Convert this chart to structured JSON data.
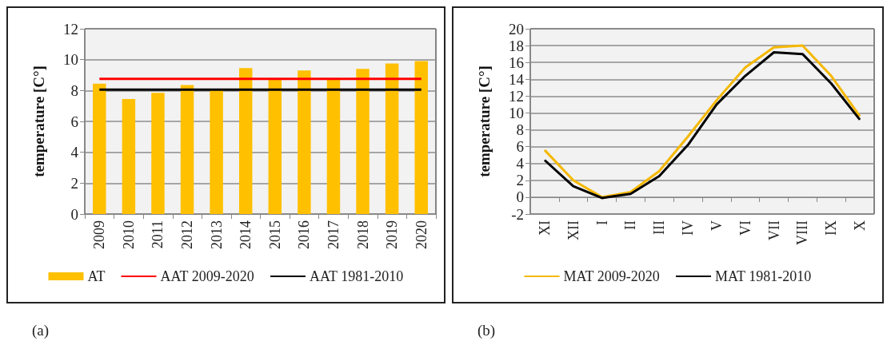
{
  "chart_data": [
    {
      "type": "bar",
      "categories": [
        "2009",
        "2010",
        "2011",
        "2012",
        "2013",
        "2014",
        "2015",
        "2016",
        "2017",
        "2018",
        "2019",
        "2020"
      ],
      "ylabel": "temperature [C°]",
      "ylim": [
        0,
        12
      ],
      "yticks": [
        0,
        2,
        4,
        6,
        8,
        10,
        12
      ],
      "grid": "y",
      "legend": "bottom",
      "annotations": [
        "(a)"
      ],
      "series": [
        {
          "name": "AT",
          "color": "#ffc000",
          "values": [
            8.45,
            7.45,
            7.85,
            8.35,
            8.0,
            9.45,
            8.75,
            9.3,
            8.75,
            9.4,
            9.75,
            9.9
          ]
        },
        {
          "name": "AAT 2009-2020",
          "type": "line",
          "color": "#ff0000",
          "values": [
            8.75,
            8.75,
            8.75,
            8.75,
            8.75,
            8.75,
            8.75,
            8.75,
            8.75,
            8.75,
            8.75,
            8.75
          ]
        },
        {
          "name": "AAT 1981-2010",
          "type": "line",
          "color": "#000000",
          "values": [
            8.05,
            8.05,
            8.05,
            8.05,
            8.05,
            8.05,
            8.05,
            8.05,
            8.05,
            8.05,
            8.05,
            8.05
          ]
        }
      ]
    },
    {
      "type": "line",
      "categories": [
        "XI",
        "XII",
        "I",
        "II",
        "III",
        "IV",
        "V",
        "VI",
        "VII",
        "VIII",
        "IX",
        "X"
      ],
      "ylabel": "temperature [C°]",
      "ylim": [
        -2,
        20
      ],
      "yticks": [
        -2,
        0,
        2,
        4,
        6,
        8,
        10,
        12,
        14,
        16,
        18,
        20
      ],
      "grid": "y",
      "legend": "bottom",
      "annotations": [
        "(b)"
      ],
      "series": [
        {
          "name": "MAT 2009-2020",
          "color": "#f5b800",
          "values": [
            5.6,
            2.0,
            0.0,
            0.6,
            3.1,
            7.2,
            11.5,
            15.4,
            17.8,
            18.0,
            14.4,
            9.6
          ]
        },
        {
          "name": "MAT 1981-2010",
          "color": "#000000",
          "values": [
            4.4,
            1.3,
            -0.1,
            0.4,
            2.5,
            6.2,
            11.0,
            14.4,
            17.2,
            17.0,
            13.5,
            9.2
          ]
        }
      ]
    }
  ]
}
